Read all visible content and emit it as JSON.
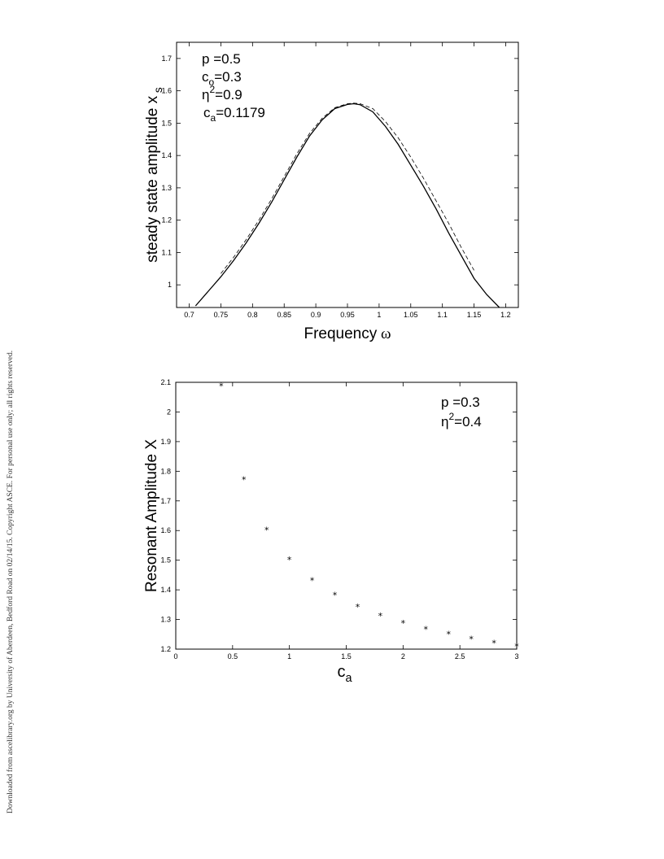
{
  "margin_note": "Downloaded from ascelibrary.org by University of Aberdeen, Bedford Road on 02/14/15. Copyright ASCE. For personal use only; all rights reserved.",
  "chart_data": [
    {
      "type": "line",
      "title": "",
      "xlabel": {
        "text": "Frequency",
        "symbol": "ω"
      },
      "ylabel": {
        "text": "steady state amplitude x",
        "sub": "s"
      },
      "xlim": [
        0.68,
        1.22
      ],
      "ylim": [
        0.93,
        1.75
      ],
      "xticks": [
        0.7,
        0.75,
        0.8,
        0.85,
        0.9,
        0.95,
        1,
        1.05,
        1.1,
        1.15,
        1.2
      ],
      "xtick_labels": [
        "0.7",
        "0.75",
        "0.8",
        "0.85",
        "0.9",
        "0.95",
        "1",
        "1.05",
        "1.1",
        "1.15",
        "1.2"
      ],
      "yticks": [
        1,
        1.1,
        1.2,
        1.3,
        1.4,
        1.5,
        1.6,
        1.7
      ],
      "ytick_labels": [
        "1",
        "1.1",
        "1.2",
        "1.3",
        "1.4",
        "1.5",
        "1.6",
        "1.7"
      ],
      "grid": false,
      "annotations": [
        {
          "lead": "p",
          "sub": "",
          "sup": "",
          "value": "=0.5"
        },
        {
          "lead": "c",
          "sub": "o",
          "sup": "",
          "value": "=0.3"
        },
        {
          "lead": "η",
          "sub": "",
          "sup": "2",
          "value": "=0.9"
        },
        {
          "lead": "c",
          "sub": "a",
          "sup": "",
          "value": "=0.1179"
        }
      ],
      "series": [
        {
          "style": "solid",
          "x": [
            0.71,
            0.73,
            0.75,
            0.77,
            0.79,
            0.81,
            0.83,
            0.85,
            0.87,
            0.89,
            0.91,
            0.93,
            0.95,
            0.96,
            0.97,
            0.99,
            1.01,
            1.03,
            1.05,
            1.07,
            1.09,
            1.11,
            1.13,
            1.15,
            1.17,
            1.19
          ],
          "y": [
            0.935,
            0.98,
            1.025,
            1.075,
            1.13,
            1.19,
            1.255,
            1.325,
            1.395,
            1.46,
            1.51,
            1.545,
            1.558,
            1.56,
            1.557,
            1.535,
            1.49,
            1.435,
            1.37,
            1.305,
            1.235,
            1.16,
            1.09,
            1.02,
            0.97,
            0.93
          ]
        },
        {
          "style": "dashed",
          "x": [
            0.75,
            0.77,
            0.79,
            0.81,
            0.83,
            0.85,
            0.87,
            0.89,
            0.91,
            0.93,
            0.95,
            0.96,
            0.97,
            0.99,
            1.01,
            1.03,
            1.05,
            1.07,
            1.09,
            1.11,
            1.13,
            1.15
          ],
          "y": [
            1.035,
            1.085,
            1.14,
            1.2,
            1.265,
            1.335,
            1.405,
            1.468,
            1.515,
            1.548,
            1.56,
            1.562,
            1.56,
            1.545,
            1.505,
            1.455,
            1.395,
            1.33,
            1.26,
            1.19,
            1.115,
            1.045
          ]
        }
      ]
    },
    {
      "type": "scatter",
      "title": "",
      "xlabel": {
        "text": "c",
        "sub": "a"
      },
      "ylabel": {
        "text": "Resonant Amplitude X",
        "sub": ""
      },
      "xlim": [
        0,
        3
      ],
      "ylim": [
        1.2,
        2.1
      ],
      "xticks": [
        0,
        0.5,
        1,
        1.5,
        2,
        2.5,
        3
      ],
      "xtick_labels": [
        "0",
        "0.5",
        "1",
        "1.5",
        "2",
        "2.5",
        "3"
      ],
      "yticks": [
        1.2,
        1.3,
        1.4,
        1.5,
        1.6,
        1.7,
        1.8,
        1.9,
        2,
        2.1
      ],
      "ytick_labels": [
        "1.2",
        "1.3",
        "1.4",
        "1.5",
        "1.6",
        "1.7",
        "1.8",
        "1.9",
        "2",
        "2.1"
      ],
      "grid": false,
      "marker": "*",
      "annotations": [
        {
          "lead": "p",
          "sub": "",
          "sup": "",
          "value": "=0.3"
        },
        {
          "lead": "η",
          "sub": "",
          "sup": "2",
          "value": "=0.4"
        }
      ],
      "series": [
        {
          "x": [
            0.4,
            0.6,
            0.8,
            1.0,
            1.2,
            1.4,
            1.6,
            1.8,
            2.0,
            2.2,
            2.4,
            2.6,
            2.8,
            3.0
          ],
          "y": [
            2.09,
            1.775,
            1.605,
            1.505,
            1.435,
            1.385,
            1.345,
            1.315,
            1.29,
            1.27,
            1.253,
            1.237,
            1.223,
            1.212
          ]
        }
      ]
    }
  ]
}
